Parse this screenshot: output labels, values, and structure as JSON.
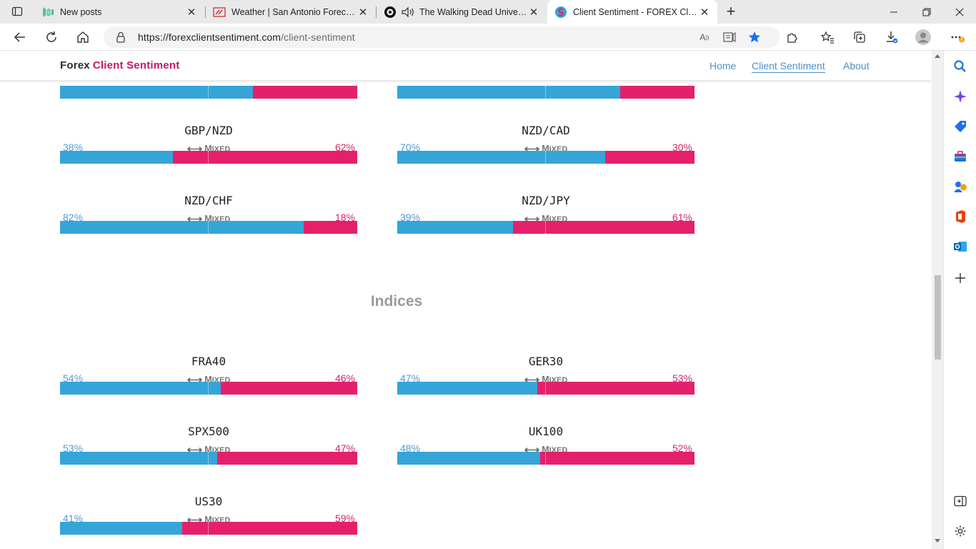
{
  "browser": {
    "tabs": [
      {
        "title": "New posts",
        "icon": "chart-candle-icon",
        "active": false
      },
      {
        "title": "Weather | San Antonio Forecast,",
        "icon": "weather-flag-icon",
        "active": false
      },
      {
        "title": "The Walking Dead Universe",
        "icon": "twd-icon",
        "active": false
      },
      {
        "title": "Client Sentiment - FOREX Client Sentiment",
        "icon": "site-s-icon",
        "active": true
      }
    ],
    "url_host": "https://forexclientsentiment.com",
    "url_path": "/client-sentiment"
  },
  "site": {
    "brand_part1": "Forex",
    "brand_part2": "Client Sentiment",
    "nav": [
      {
        "label": "Home",
        "active": false
      },
      {
        "label": "Client Sentiment",
        "active": true
      },
      {
        "label": "About",
        "active": false
      }
    ],
    "mixed_label_first": "M",
    "mixed_label_rest": "IXED"
  },
  "partial_top_bars": [
    {
      "long_pct": 65
    },
    {
      "long_pct": 75
    }
  ],
  "forex_pairs": [
    {
      "name": "GBP/NZD",
      "long": "38%",
      "short": "62%",
      "long_pct": 38
    },
    {
      "name": "NZD/CAD",
      "long": "70%",
      "short": "30%",
      "long_pct": 70
    },
    {
      "name": "NZD/CHF",
      "long": "82%",
      "short": "18%",
      "long_pct": 82
    },
    {
      "name": "NZD/JPY",
      "long": "39%",
      "short": "61%",
      "long_pct": 39
    }
  ],
  "indices_title": "Indices",
  "indices": [
    {
      "name": "FRA40",
      "long": "54%",
      "short": "46%",
      "long_pct": 54
    },
    {
      "name": "GER30",
      "long": "47%",
      "short": "53%",
      "long_pct": 47
    },
    {
      "name": "SPX500",
      "long": "53%",
      "short": "47%",
      "long_pct": 53
    },
    {
      "name": "UK100",
      "long": "48%",
      "short": "52%",
      "long_pct": 48
    },
    {
      "name": "US30",
      "long": "41%",
      "short": "59%",
      "long_pct": 41
    }
  ],
  "colors": {
    "long": "#35a5d8",
    "short": "#e5206b",
    "brand_accent": "#c4186c",
    "nav_link": "#4f8fc6"
  }
}
